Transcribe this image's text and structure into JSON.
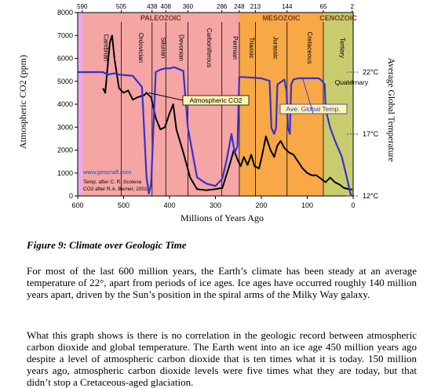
{
  "chart_data": {
    "type": "line",
    "xlabel": "Millions of Years Ago",
    "ylabel_left": "Atmospheric CO2 (ppm)",
    "ylabel_right": "Average Global Temperature",
    "xlim": [
      600,
      0
    ],
    "ylim": [
      0,
      8000
    ],
    "x_ticks": [
      "600",
      "500",
      "400",
      "300",
      "200",
      "100",
      "0"
    ],
    "y_ticks": [
      "0",
      "1000",
      "2000",
      "3000",
      "4000",
      "5000",
      "6000",
      "7000",
      "8000"
    ],
    "top_ticks": [
      "590",
      "505",
      "438",
      "408",
      "360",
      "286",
      "248",
      "213",
      "144",
      "65",
      "2"
    ],
    "right_ticks": [
      "22°C",
      "17°C",
      "12°C"
    ],
    "eras": [
      {
        "name": "PALEOZOIC",
        "from": 590,
        "to": 248,
        "color": "#f6a5a5"
      },
      {
        "name": "MESOZOIC",
        "from": 248,
        "to": 65,
        "color": "#f8a846"
      },
      {
        "name": "CENOZOIC",
        "from": 65,
        "to": 0,
        "color": "#c9cc6e"
      }
    ],
    "periods": [
      {
        "name": "Cambrian",
        "from": 590,
        "to": 505
      },
      {
        "name": "Ordovician",
        "from": 505,
        "to": 438
      },
      {
        "name": "Silurian",
        "from": 438,
        "to": 408
      },
      {
        "name": "Devonian",
        "from": 408,
        "to": 360
      },
      {
        "name": "Carboniferous",
        "from": 360,
        "to": 286
      },
      {
        "name": "Permian",
        "from": 286,
        "to": 248
      },
      {
        "name": "Triassic",
        "from": 248,
        "to": 213
      },
      {
        "name": "Jurassic",
        "from": 213,
        "to": 144
      },
      {
        "name": "Cretaceous",
        "from": 144,
        "to": 65
      },
      {
        "name": "Tertiary",
        "from": 65,
        "to": 2
      }
    ],
    "quaternary_label": "Quaternary",
    "series": [
      {
        "name": "Atmospheric CO2",
        "color": "#000000",
        "x": [
          545,
          540,
          530,
          525,
          520,
          510,
          500,
          490,
          480,
          470,
          455,
          450,
          440,
          430,
          420,
          410,
          400,
          392,
          385,
          370,
          355,
          340,
          320,
          300,
          285,
          270,
          260,
          250,
          245,
          238,
          230,
          222,
          215,
          205,
          198,
          190,
          180,
          172,
          165,
          158,
          150,
          140,
          130,
          120,
          110,
          100,
          90,
          80,
          70,
          60,
          50,
          40,
          30,
          20,
          10,
          2
        ],
        "values": [
          4700,
          4500,
          6700,
          7000,
          6000,
          4700,
          4500,
          4600,
          4200,
          4300,
          4400,
          4500,
          4300,
          3400,
          2900,
          3000,
          3600,
          4000,
          2900,
          1900,
          800,
          300,
          250,
          300,
          350,
          1300,
          2000,
          1500,
          1300,
          1700,
          1350,
          1800,
          1300,
          1200,
          1800,
          2600,
          2000,
          1700,
          2200,
          2400,
          2100,
          1900,
          1800,
          1500,
          1200,
          1000,
          900,
          900,
          750,
          600,
          800,
          600,
          500,
          350,
          300,
          280
        ]
      },
      {
        "name": "Ave. Global Temp.",
        "color": "#3333cc",
        "x": [
          600,
          555,
          545,
          535,
          520,
          510,
          480,
          460,
          450,
          445,
          440,
          430,
          420,
          410,
          400,
          390,
          370,
          360,
          340,
          320,
          300,
          285,
          275,
          265,
          258,
          252,
          248,
          240,
          200,
          182,
          178,
          172,
          168,
          165,
          150,
          145,
          142,
          138,
          135,
          130,
          120,
          90,
          75,
          68,
          62,
          60,
          50,
          40,
          25,
          12,
          6,
          3
        ],
        "values": [
          22,
          22,
          22,
          21.8,
          21.9,
          21.8,
          21.7,
          20.8,
          13.5,
          12.2,
          13,
          22,
          22.2,
          22.3,
          22.3,
          22.4,
          22.1,
          17.5,
          13.5,
          13,
          12.8,
          13.4,
          15,
          17,
          15.5,
          16,
          21.6,
          21.6,
          21.5,
          21.3,
          17.5,
          17,
          17.5,
          21,
          21.4,
          20.5,
          17.5,
          17,
          21,
          21.4,
          21.5,
          21.5,
          21.5,
          21.3,
          21,
          19,
          17.5,
          16.5,
          15.2,
          13.2,
          12.2,
          12
        ]
      }
    ],
    "annotations": [
      {
        "text": "Atmospheric CO2",
        "color": "#000000"
      },
      {
        "text": "Ave. Global Temp.",
        "color": "#3333cc"
      }
    ],
    "credits": [
      "www.geocraft.com",
      "Temp. after C. R. Scotese",
      "CO2 after R.A. Berner, 2001"
    ]
  },
  "caption": "Figure 9: Climate over Geologic Time",
  "paragraphs": [
    "For most of the last 600 million years, the Earth’s climate has been steady at an average temperature of 22°, apart from periods of ice ages. Ice ages have occurred roughly 140 million years apart, driven by the Sun’s position in the spiral arms of the Milky Way galaxy.",
    "What this graph shows is there is no correlation in the geologic record between atmospheric carbon dioxide and global temperature. The Earth went into an ice age 450 million years ago despite a level of atmospheric carbon dioxide that is ten times what it is today. 150 million years ago, atmospheric carbon dioxide levels were five times what they are today, but that didn’t stop a Cretaceous-aged glaciation."
  ]
}
